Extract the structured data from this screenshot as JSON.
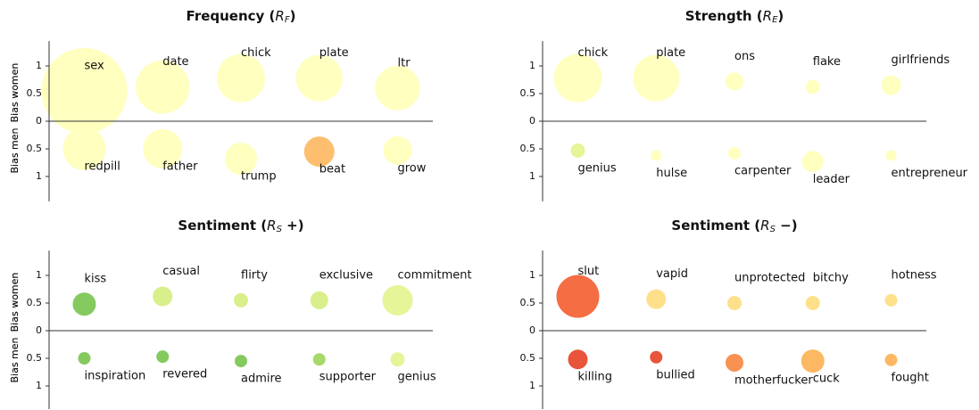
{
  "chart_data": [
    {
      "type": "scatter",
      "title_parts": [
        "Frequency (",
        "R",
        "F",
        ")"
      ],
      "ylabel_top": "Bias women",
      "ylabel_bottom": "Bias men",
      "x": [
        1,
        2,
        3,
        4,
        5
      ],
      "xlim": [
        0.55,
        5.45
      ],
      "ylim": [
        -1.45,
        1.45
      ],
      "yticks": [
        1,
        0.5,
        0,
        {
          "value": -0.5,
          "label": "0.5"
        },
        {
          "value": -1,
          "label": "1"
        }
      ],
      "groups": [
        {
          "labels": [
            "sex",
            "date",
            "chick",
            "plate",
            "ltr"
          ],
          "values": [
            0.55,
            0.62,
            0.78,
            0.78,
            0.6
          ],
          "sizes": [
            48,
            30,
            27,
            26,
            25
          ],
          "colors": [
            "#ffffbf",
            "#ffffbf",
            "#ffffbf",
            "#ffffbf",
            "#ffffbf"
          ]
        },
        {
          "labels": [
            "redpill",
            "father",
            "trump",
            "beat",
            "grow"
          ],
          "values": [
            -0.5,
            -0.5,
            -0.68,
            -0.55,
            -0.53
          ],
          "sizes": [
            24,
            22,
            18,
            17,
            16
          ],
          "colors": [
            "#ffffbf",
            "#ffffbf",
            "#ffffbf",
            "#fdbf6f",
            "#ffffbf"
          ]
        }
      ]
    },
    {
      "type": "scatter",
      "title_parts": [
        "Strength (",
        "R",
        "E",
        ")"
      ],
      "ylabel_top": "Bias women",
      "ylabel_bottom": "Bias men",
      "x": [
        1,
        2,
        3,
        4,
        5
      ],
      "xlim": [
        0.55,
        5.45
      ],
      "ylim": [
        -1.45,
        1.45
      ],
      "yticks": [
        1,
        0.5,
        0,
        {
          "value": -0.5,
          "label": "0.5"
        },
        {
          "value": -1,
          "label": "1"
        }
      ],
      "groups": [
        {
          "labels": [
            "chick",
            "plate",
            "ons",
            "flake",
            "girlfriends"
          ],
          "values": [
            0.78,
            0.78,
            0.72,
            0.62,
            0.65
          ],
          "sizes": [
            27,
            26,
            10,
            8,
            11
          ],
          "colors": [
            "#ffffbf",
            "#ffffbf",
            "#ffffbf",
            "#ffffbf",
            "#ffffbf"
          ]
        },
        {
          "labels": [
            "genius",
            "hulse",
            "carpenter",
            "leader",
            "entrepreneur"
          ],
          "values": [
            -0.53,
            -0.62,
            -0.58,
            -0.73,
            -0.62
          ],
          "sizes": [
            8,
            6,
            7,
            12,
            6
          ],
          "colors": [
            "#e6f598",
            "#ffffbf",
            "#ffffbf",
            "#ffffbf",
            "#ffffbf"
          ]
        }
      ]
    },
    {
      "type": "scatter",
      "title_parts": [
        "Sentiment (",
        "R",
        "S",
        " +)"
      ],
      "ylabel_top": "Bias women",
      "ylabel_bottom": "Bias men",
      "x": [
        1,
        2,
        3,
        4,
        5
      ],
      "xlim": [
        0.55,
        5.45
      ],
      "ylim": [
        -1.45,
        1.45
      ],
      "yticks": [
        1,
        0.5,
        0,
        {
          "value": -0.5,
          "label": "0.5"
        },
        {
          "value": -1,
          "label": "1"
        }
      ],
      "groups": [
        {
          "labels": [
            "kiss",
            "casual",
            "flirty",
            "exclusive",
            "commitment"
          ],
          "values": [
            0.48,
            0.62,
            0.55,
            0.55,
            0.55
          ],
          "sizes": [
            13,
            11,
            8,
            10,
            17
          ],
          "colors": [
            "#84ca5f",
            "#d9ef8b",
            "#d9ef8b",
            "#d9ef8b",
            "#e6f598"
          ]
        },
        {
          "labels": [
            "inspiration",
            "revered",
            "admire",
            "supporter",
            "genius"
          ],
          "values": [
            -0.5,
            -0.47,
            -0.55,
            -0.52,
            -0.52
          ],
          "sizes": [
            7,
            7,
            7,
            7,
            8
          ],
          "colors": [
            "#84ca5f",
            "#84ca5f",
            "#84ca5f",
            "#a6d96a",
            "#e6f598"
          ]
        }
      ]
    },
    {
      "type": "scatter",
      "title_parts": [
        "Sentiment (",
        "R",
        "S",
        " −)"
      ],
      "ylabel_top": "Bias women",
      "ylabel_bottom": "Bias men",
      "x": [
        1,
        2,
        3,
        4,
        5
      ],
      "xlim": [
        0.55,
        5.45
      ],
      "ylim": [
        -1.45,
        1.45
      ],
      "yticks": [
        1,
        0.5,
        0,
        {
          "value": -0.5,
          "label": "0.5"
        },
        {
          "value": -1,
          "label": "1"
        }
      ],
      "groups": [
        {
          "labels": [
            "slut",
            "vapid",
            "unprotected",
            "bitchy",
            "hotness"
          ],
          "values": [
            0.62,
            0.57,
            0.5,
            0.5,
            0.55
          ],
          "sizes": [
            24,
            11,
            8,
            8,
            7
          ],
          "colors": [
            "#f46d43",
            "#fee08b",
            "#fee08b",
            "#fee08b",
            "#fee08b"
          ]
        },
        {
          "labels": [
            "killing",
            "bullied",
            "motherfucker",
            "cuck",
            "fought"
          ],
          "values": [
            -0.52,
            -0.48,
            -0.58,
            -0.55,
            -0.53
          ],
          "sizes": [
            11,
            7,
            10,
            13,
            7
          ],
          "colors": [
            "#e8553a",
            "#e8553a",
            "#f99153",
            "#fdb863",
            "#fdb863"
          ]
        }
      ]
    }
  ]
}
